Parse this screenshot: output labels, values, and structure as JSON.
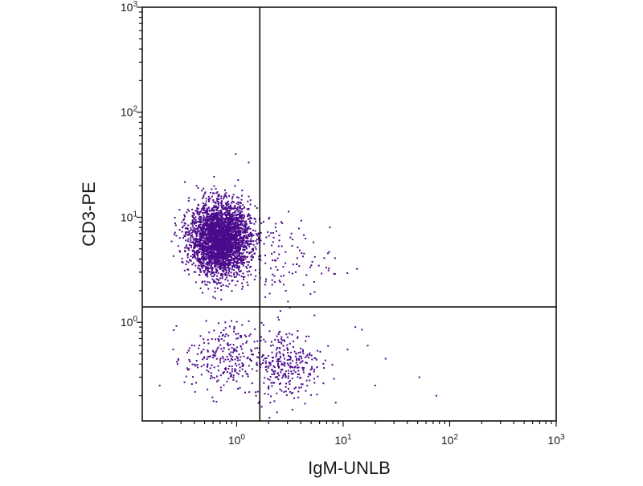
{
  "chart_data": {
    "type": "scatter",
    "title": "",
    "xlabel": "IgM-UNLB",
    "ylabel": "CD3-PE",
    "x_scale": "log",
    "y_scale": "log",
    "xlim": [
      0.13,
      1000
    ],
    "ylim": [
      0.115,
      1000
    ],
    "x_ticks": [
      {
        "base": "10",
        "exp": "0",
        "value": 1
      },
      {
        "base": "10",
        "exp": "1",
        "value": 10
      },
      {
        "base": "10",
        "exp": "2",
        "value": 100
      },
      {
        "base": "10",
        "exp": "3",
        "value": 1000
      }
    ],
    "y_ticks": [
      {
        "base": "10",
        "exp": "0",
        "value": 1
      },
      {
        "base": "10",
        "exp": "1",
        "value": 10
      },
      {
        "base": "10",
        "exp": "2",
        "value": 100
      },
      {
        "base": "10",
        "exp": "3",
        "value": 1000
      }
    ],
    "quadrant_gate": {
      "x": 1.65,
      "y": 1.4
    },
    "point_color": "#4b0a8c",
    "populations": [
      {
        "count": 3200,
        "center": [
          0.7,
          6.2
        ],
        "spread_log10": [
          0.14,
          0.17
        ]
      },
      {
        "count": 260,
        "center": [
          0.75,
          0.45
        ],
        "spread_log10": [
          0.18,
          0.17
        ]
      },
      {
        "count": 300,
        "center": [
          3.0,
          0.4
        ],
        "spread_log10": [
          0.16,
          0.17
        ]
      },
      {
        "count": 140,
        "center": [
          2.2,
          4.0
        ],
        "spread_log10": [
          0.28,
          0.22
        ]
      }
    ],
    "sparse_points": [
      [
        0.98,
        40
      ],
      [
        7.5,
        8
      ],
      [
        13,
        0.9
      ],
      [
        17,
        0.6
      ],
      [
        20,
        0.25
      ],
      [
        52,
        0.3
      ],
      [
        75,
        0.2
      ],
      [
        11,
        0.55
      ],
      [
        15,
        0.85
      ],
      [
        25,
        0.45
      ]
    ],
    "grid": false,
    "legend": "none"
  }
}
